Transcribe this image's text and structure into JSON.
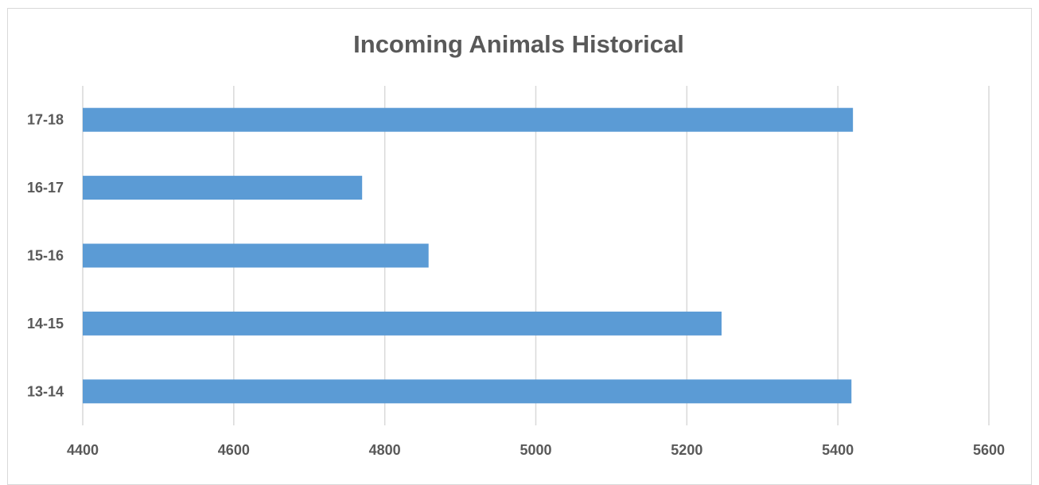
{
  "chart_data": {
    "type": "bar",
    "orientation": "horizontal",
    "title": "Incoming Animals Historical",
    "xlabel": "",
    "ylabel": "",
    "categories": [
      "13-14",
      "14-15",
      "15-16",
      "16-17",
      "17-18"
    ],
    "values": [
      5418,
      5246,
      4858,
      4770,
      5420
    ],
    "xlim": [
      4400,
      5600
    ],
    "xticks": [
      "4400",
      "4600",
      "4800",
      "5000",
      "5200",
      "5400",
      "5600"
    ],
    "grid": true,
    "legend": "none",
    "bar_color": "#5b9bd5"
  }
}
